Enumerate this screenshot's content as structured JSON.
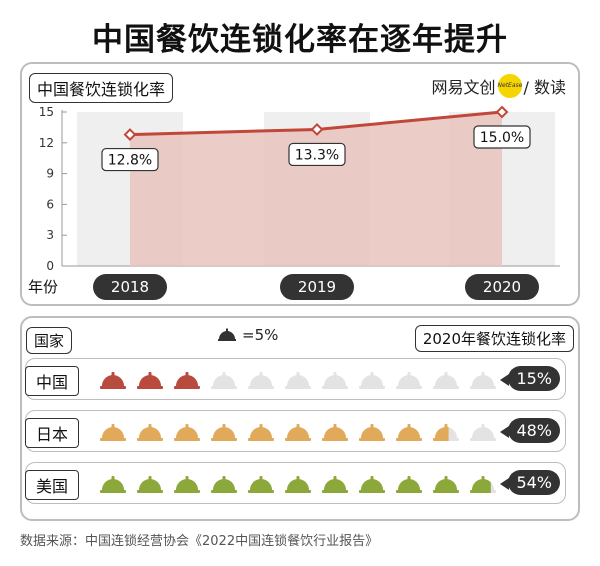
{
  "title": "中国餐饮连锁化率在逐年提升",
  "chart_data": [
    {
      "type": "line",
      "title": "中国餐饮连锁化率",
      "xlabel": "年份",
      "ylabel": "",
      "categories": [
        "2018",
        "2019",
        "2020"
      ],
      "values": [
        12.8,
        13.3,
        15.0
      ],
      "value_labels": [
        "12.8%",
        "13.3%",
        "15.0%"
      ],
      "ylim": [
        0,
        15
      ],
      "yticks": [
        0,
        3,
        6,
        9,
        12,
        15
      ],
      "ytick_labels": [
        "0",
        "3",
        "6",
        "9",
        "12",
        "15"
      ],
      "colors": {
        "line": "#c0473a",
        "area": "#e9c3bd",
        "column": "#efefef"
      }
    },
    {
      "type": "pictograph",
      "title": "2020年餐饮连锁化率",
      "unit_label": "=5%",
      "unit_value": 5,
      "icon": "cloche-icon",
      "categories": [
        "中国",
        "日本",
        "美国"
      ],
      "values": [
        15,
        48,
        54
      ],
      "value_labels": [
        "15%",
        "48%",
        "54%"
      ],
      "icons_per_row": 11,
      "colors": {
        "中国": "#b94a3e",
        "日本": "#e1aa5a",
        "美国": "#8ca83a",
        "empty": "#e3e3e3"
      }
    }
  ],
  "brand": {
    "left": "网易文创",
    "dot": "NetEase",
    "right": "/ 数读"
  },
  "top_panel": {
    "metric_tag": "中国餐饮连锁化率",
    "year_label": "年份"
  },
  "bottom_panel": {
    "country_header": "国家",
    "rate_header": "2020年餐饮连锁化率"
  },
  "source": "数据来源：中国连锁经营协会《2022中国连锁餐饮行业报告》"
}
